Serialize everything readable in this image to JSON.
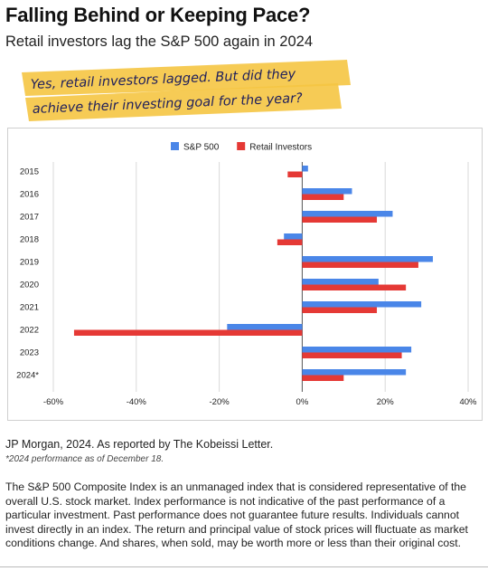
{
  "header": {
    "title": "Falling Behind or Keeping Pace?",
    "subtitle": "Retail investors lag the S&P 500 again in 2024"
  },
  "callout": {
    "line1": "Yes, retail investors lagged. But did they",
    "line2": "achieve their investing goal for the year?",
    "highlight_color": "#f5c542",
    "text_color": "#1f1f5c"
  },
  "chart_data": {
    "type": "bar",
    "orientation": "horizontal",
    "categories": [
      "2015",
      "2016",
      "2017",
      "2018",
      "2019",
      "2020",
      "2021",
      "2022",
      "2023",
      "2024*"
    ],
    "series": [
      {
        "name": "S&P 500",
        "color": "#4a86e8",
        "values": [
          1.4,
          12,
          21.8,
          -4.4,
          31.5,
          18.4,
          28.7,
          -18.1,
          26.3,
          25
        ]
      },
      {
        "name": "Retail Investors",
        "color": "#e53935",
        "values": [
          -3.5,
          10,
          18,
          -6,
          28,
          25,
          18,
          -55,
          24,
          10
        ]
      }
    ],
    "xlim": [
      -60,
      40
    ],
    "xticks": [
      "-60%",
      "-40%",
      "-20%",
      "0%",
      "20%",
      "40%"
    ],
    "grid": true,
    "legend_position": "top"
  },
  "footer": {
    "source": "JP Morgan, 2024. As reported by The Kobeissi Letter.",
    "footnote": "*2024 performance as of December 18.",
    "disclaimer": "The S&P 500 Composite Index is an unmanaged index that is considered representative of the overall U.S. stock market. Index performance is not indicative of the past performance of a particular investment. Past performance does not guarantee future results. Individuals cannot invest directly in an index. The return and principal value of stock prices will fluctuate as market conditions change. And shares, when sold, may be worth more or less than their original cost."
  }
}
